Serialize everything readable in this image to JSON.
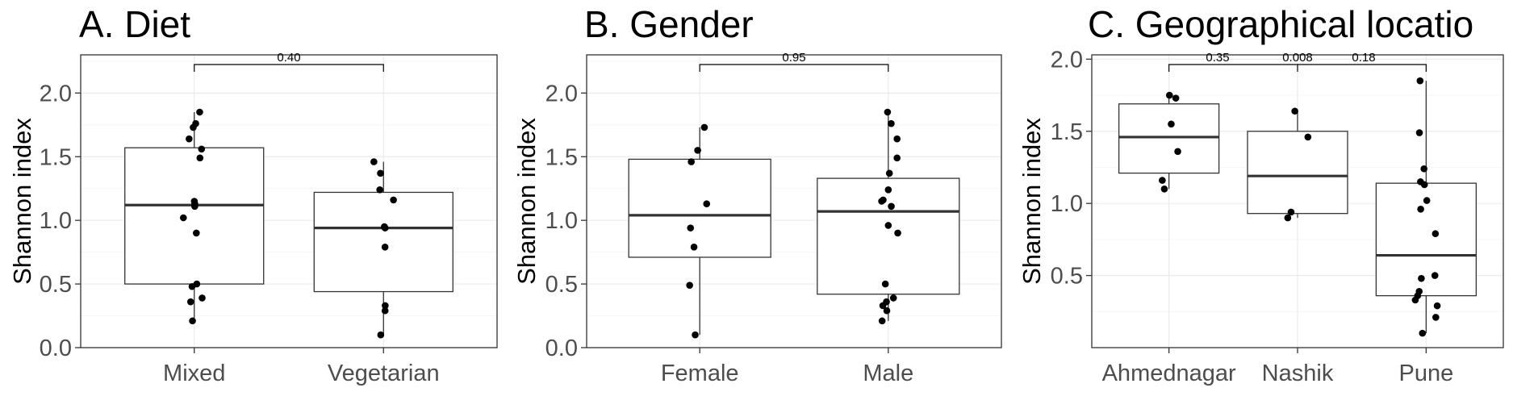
{
  "chart_data": [
    {
      "type": "box",
      "title": "A. Diet",
      "ylabel": "Shannon index",
      "xlabel": "",
      "ylim": [
        0,
        2.3
      ],
      "yticks": [
        0.0,
        0.5,
        1.0,
        1.5,
        2.0
      ],
      "ytick_labels": [
        "0.0",
        "0.5",
        "1.0",
        "1.5",
        "2.0"
      ],
      "grid": true,
      "categories": [
        "Mixed",
        "Vegetarian"
      ],
      "boxes": [
        {
          "q1": 0.5,
          "median": 1.12,
          "q3": 1.57,
          "whisker_low": 0.21,
          "whisker_high": 1.85
        },
        {
          "q1": 0.44,
          "median": 0.94,
          "q3": 1.22,
          "whisker_low": 0.1,
          "whisker_high": 1.46
        }
      ],
      "points": [
        [
          1.85,
          1.76,
          1.73,
          1.64,
          1.56,
          1.49,
          1.15,
          1.13,
          1.11,
          1.02,
          0.9,
          0.5,
          0.48,
          0.39,
          0.36,
          0.21
        ],
        [
          1.46,
          1.37,
          1.24,
          1.16,
          0.95,
          0.94,
          0.79,
          0.33,
          0.29,
          0.1
        ]
      ],
      "comparisons": [
        {
          "from": 0,
          "to": 1,
          "label": "0.40"
        }
      ]
    },
    {
      "type": "box",
      "title": "B. Gender",
      "ylabel": "Shannon index",
      "xlabel": "",
      "ylim": [
        0,
        2.3
      ],
      "yticks": [
        0.0,
        0.5,
        1.0,
        1.5,
        2.0
      ],
      "ytick_labels": [
        "0.0",
        "0.5",
        "1.0",
        "1.5",
        "2.0"
      ],
      "grid": true,
      "categories": [
        "Female",
        "Male"
      ],
      "boxes": [
        {
          "q1": 0.71,
          "median": 1.04,
          "q3": 1.48,
          "whisker_low": 0.1,
          "whisker_high": 1.73
        },
        {
          "q1": 0.42,
          "median": 1.07,
          "q3": 1.33,
          "whisker_low": 0.21,
          "whisker_high": 1.85
        }
      ],
      "points": [
        [
          1.73,
          1.55,
          1.46,
          1.13,
          0.94,
          0.79,
          0.49,
          0.1
        ],
        [
          1.85,
          1.76,
          1.64,
          1.49,
          1.37,
          1.24,
          1.16,
          1.15,
          1.11,
          0.96,
          0.9,
          0.5,
          0.39,
          0.36,
          0.33,
          0.29,
          0.21
        ]
      ],
      "comparisons": [
        {
          "from": 0,
          "to": 1,
          "label": "0.95"
        }
      ]
    },
    {
      "type": "box",
      "title": "C. Geographical locatio",
      "ylabel": "Shannon index",
      "xlabel": "",
      "ylim": [
        0.0,
        2.03
      ],
      "yticks": [
        0.5,
        1.0,
        1.5,
        2.0
      ],
      "ytick_labels": [
        "0.5",
        "1.0",
        "1.5",
        "2.0"
      ],
      "grid": true,
      "categories": [
        "Ahmednagar",
        "Nashik",
        "Pune"
      ],
      "boxes": [
        {
          "q1": 1.21,
          "median": 1.46,
          "q3": 1.69,
          "whisker_low": 1.1,
          "whisker_high": 1.75
        },
        {
          "q1": 0.93,
          "median": 1.19,
          "q3": 1.5,
          "whisker_low": 0.9,
          "whisker_high": 1.64
        },
        {
          "q1": 0.36,
          "median": 0.64,
          "q3": 1.14,
          "whisker_low": 0.1,
          "whisker_high": 1.85
        }
      ],
      "points": [
        [
          1.75,
          1.73,
          1.55,
          1.36,
          1.16,
          1.1
        ],
        [
          1.64,
          1.46,
          0.94,
          0.9
        ],
        [
          1.85,
          1.49,
          1.24,
          1.15,
          1.13,
          1.02,
          0.96,
          0.79,
          0.5,
          0.48,
          0.39,
          0.36,
          0.33,
          0.29,
          0.21,
          0.1
        ]
      ],
      "comparisons": [
        {
          "from": 0,
          "to": 2,
          "label": "0.35"
        },
        {
          "from": 0,
          "to": 2,
          "label": "0.008"
        },
        {
          "from": 0,
          "to": 2,
          "label": "0.18"
        }
      ]
    }
  ]
}
